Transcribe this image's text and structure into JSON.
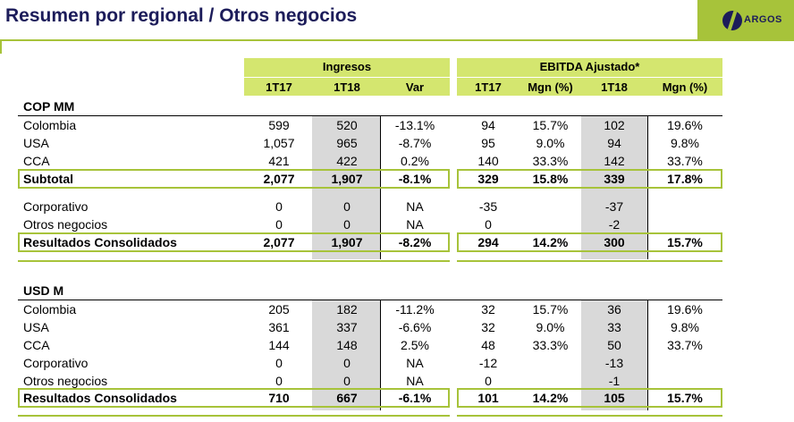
{
  "header": {
    "title": "Resumen por regional / Otros negocios",
    "logo_text": "ARGOS"
  },
  "colors": {
    "accent_green": "#a7c33a",
    "band_green": "#d4e66f",
    "gray_col": "#d9d9d9",
    "title_navy": "#1c1c5a"
  },
  "groups": {
    "ingresos": "Ingresos",
    "ebitda": "EBITDA Ajustado*"
  },
  "subheaders": {
    "ing_1t17": "1T17",
    "ing_1t18": "1T18",
    "ing_var": "Var",
    "eb_1t17": "1T17",
    "eb_mgn17": "Mgn (%)",
    "eb_1t18": "1T18",
    "eb_mgn18": "Mgn (%)"
  },
  "cop": {
    "section": "COP MM",
    "rows": [
      {
        "label": "Colombia",
        "v": [
          "599",
          "520",
          "-13.1%",
          "94",
          "15.7%",
          "102",
          "19.6%"
        ]
      },
      {
        "label": "USA",
        "v": [
          "1,057",
          "965",
          "-8.7%",
          "95",
          "9.0%",
          "94",
          "9.8%"
        ]
      },
      {
        "label": "CCA",
        "v": [
          "421",
          "422",
          "0.2%",
          "140",
          "33.3%",
          "142",
          "33.7%"
        ]
      },
      {
        "label": "Subtotal",
        "v": [
          "2,077",
          "1,907",
          "-8.1%",
          "329",
          "15.8%",
          "339",
          "17.8%"
        ]
      },
      {
        "label": "Corporativo",
        "v": [
          "0",
          "0",
          "NA",
          "-35",
          "",
          "-37",
          ""
        ]
      },
      {
        "label": "Otros negocios",
        "v": [
          "0",
          "0",
          "NA",
          "0",
          "",
          "-2",
          ""
        ]
      },
      {
        "label": "Resultados Consolidados",
        "v": [
          "2,077",
          "1,907",
          "-8.2%",
          "294",
          "14.2%",
          "300",
          "15.7%"
        ]
      }
    ]
  },
  "usd": {
    "section": "USD M",
    "rows": [
      {
        "label": "Colombia",
        "v": [
          "205",
          "182",
          "-11.2%",
          "32",
          "15.7%",
          "36",
          "19.6%"
        ]
      },
      {
        "label": "USA",
        "v": [
          "361",
          "337",
          "-6.6%",
          "32",
          "9.0%",
          "33",
          "9.8%"
        ]
      },
      {
        "label": "CCA",
        "v": [
          "144",
          "148",
          "2.5%",
          "48",
          "33.3%",
          "50",
          "33.7%"
        ]
      },
      {
        "label": "Corporativo",
        "v": [
          "0",
          "0",
          "NA",
          "-12",
          "",
          "-13",
          ""
        ]
      },
      {
        "label": "Otros negocios",
        "v": [
          "0",
          "0",
          "NA",
          "0",
          "",
          "-1",
          ""
        ]
      },
      {
        "label": "Resultados Consolidados",
        "v": [
          "710",
          "667",
          "-6.1%",
          "101",
          "14.2%",
          "105",
          "15.7%"
        ]
      }
    ]
  }
}
